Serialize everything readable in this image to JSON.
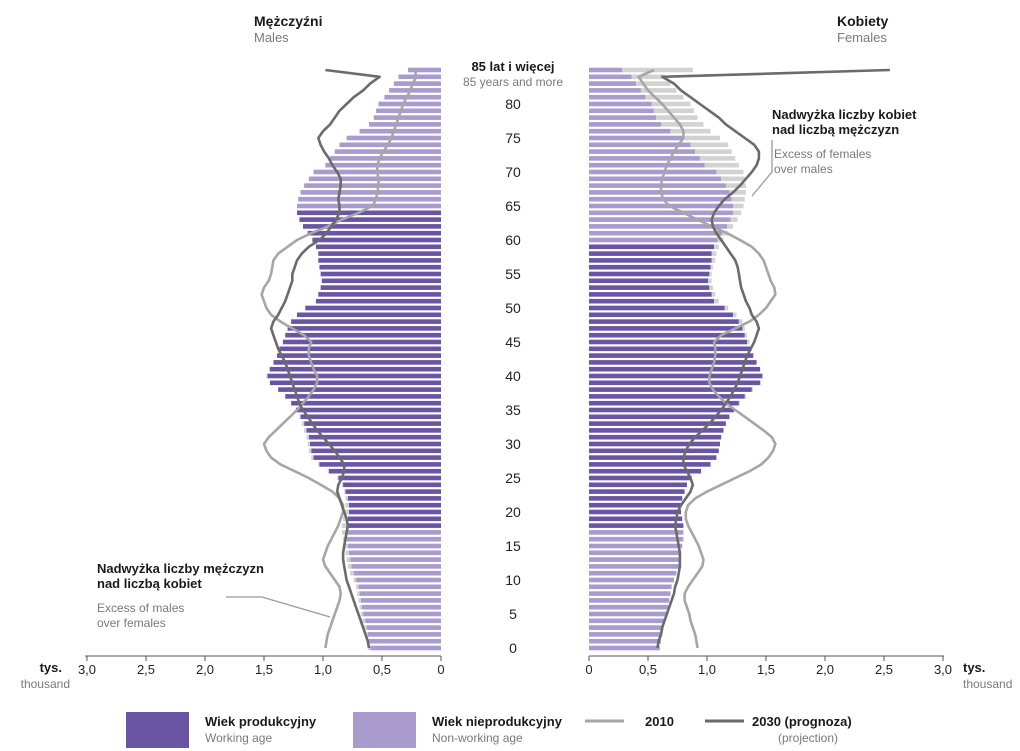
{
  "labels": {
    "males_pl": "Mężczyźni",
    "males_en": "Males",
    "females_pl": "Kobiety",
    "females_en": "Females",
    "age_top_pl": "85 lat i więcej",
    "age_top_en": "85 years and more",
    "unit_pl_left": "tys.",
    "unit_en_left": "thousand",
    "unit_pl_right": "tys.",
    "unit_en_right": "thousand",
    "excess_females_pl_1": "Nadwyżka liczby kobiet",
    "excess_females_pl_2": "nad liczbą mężczyzn",
    "excess_females_en_1": "Excess of females",
    "excess_females_en_2": "over males",
    "excess_males_pl_1": "Nadwyżka liczby mężczyzn",
    "excess_males_pl_2": "nad liczbą kobiet",
    "excess_males_en_1": "Excess of males",
    "excess_males_en_2": "over females"
  },
  "legend": {
    "working_pl": "Wiek produkcyjny",
    "working_en": "Working age",
    "nonworking_pl": "Wiek nieprodukcyjny",
    "nonworking_en": "Non-working age",
    "line2010": "2010",
    "line2030_pl": "2030 (prognoza)",
    "line2030_en": "(projection)"
  },
  "chart_data": {
    "type": "population-pyramid",
    "x_unit": "thousand",
    "age_axis_ticks": [
      "0",
      "5",
      "10",
      "15",
      "20",
      "25",
      "30",
      "35",
      "40",
      "45",
      "50",
      "55",
      "60",
      "65",
      "70",
      "75",
      "80"
    ],
    "value_axis_ticks": [
      "3,0",
      "2,5",
      "2,0",
      "1,5",
      "1,0",
      "0,5",
      "0"
    ],
    "value_axis_ticks_right": [
      "0",
      "0,5",
      "1,0",
      "1,5",
      "2,0",
      "2,5",
      "3,0"
    ],
    "xlim": [
      0,
      3.0
    ],
    "ages": [
      0,
      1,
      2,
      3,
      4,
      5,
      6,
      7,
      8,
      9,
      10,
      11,
      12,
      13,
      14,
      15,
      16,
      17,
      18,
      19,
      20,
      21,
      22,
      23,
      24,
      25,
      26,
      27,
      28,
      29,
      30,
      31,
      32,
      33,
      34,
      35,
      36,
      37,
      38,
      39,
      40,
      41,
      42,
      43,
      44,
      45,
      46,
      47,
      48,
      49,
      50,
      51,
      52,
      53,
      54,
      55,
      56,
      57,
      58,
      59,
      60,
      61,
      62,
      63,
      64,
      65,
      66,
      67,
      68,
      69,
      70,
      71,
      72,
      73,
      74,
      75,
      76,
      77,
      78,
      79,
      80,
      81,
      82,
      83,
      84,
      85
    ],
    "working_age": {
      "males": [
        18,
        64
      ],
      "females": [
        18,
        59
      ]
    },
    "colors": {
      "working": "#6a54a4",
      "nonworking": "#a99bcd",
      "excess": "#d2d2d2",
      "line2010": "#a6a6a6",
      "line2030": "#6b6b6b"
    },
    "series": [
      {
        "name": "Males",
        "values": [
          0.62,
          0.63,
          0.64,
          0.66,
          0.67,
          0.68,
          0.69,
          0.7,
          0.71,
          0.72,
          0.74,
          0.77,
          0.79,
          0.8,
          0.81,
          0.82,
          0.83,
          0.84,
          0.84,
          0.83,
          0.82,
          0.81,
          0.81,
          0.82,
          0.84,
          0.88,
          0.96,
          1.04,
          1.1,
          1.12,
          1.13,
          1.14,
          1.16,
          1.18,
          1.2,
          1.23,
          1.27,
          1.32,
          1.38,
          1.45,
          1.48,
          1.46,
          1.42,
          1.39,
          1.37,
          1.34,
          1.32,
          1.3,
          1.27,
          1.22,
          1.15,
          1.06,
          1.04,
          1.02,
          1.01,
          1.02,
          1.03,
          1.04,
          1.04,
          1.06,
          1.09,
          1.13,
          1.17,
          1.2,
          1.22,
          1.22,
          1.21,
          1.19,
          1.16,
          1.12,
          1.08,
          0.98,
          0.94,
          0.9,
          0.86,
          0.8,
          0.69,
          0.61,
          0.57,
          0.55,
          0.53,
          0.48,
          0.44,
          0.4,
          0.36,
          0.28
        ]
      },
      {
        "name": "Females",
        "values": [
          0.6,
          0.61,
          0.62,
          0.63,
          0.64,
          0.66,
          0.67,
          0.68,
          0.69,
          0.7,
          0.72,
          0.74,
          0.76,
          0.77,
          0.78,
          0.79,
          0.8,
          0.8,
          0.8,
          0.79,
          0.78,
          0.78,
          0.79,
          0.81,
          0.83,
          0.87,
          0.95,
          1.03,
          1.08,
          1.1,
          1.11,
          1.12,
          1.14,
          1.16,
          1.19,
          1.23,
          1.28,
          1.33,
          1.39,
          1.46,
          1.47,
          1.45,
          1.42,
          1.4,
          1.38,
          1.36,
          1.34,
          1.32,
          1.3,
          1.25,
          1.18,
          1.1,
          1.07,
          1.05,
          1.04,
          1.04,
          1.05,
          1.07,
          1.08,
          1.1,
          1.14,
          1.18,
          1.22,
          1.26,
          1.29,
          1.31,
          1.32,
          1.33,
          1.33,
          1.32,
          1.31,
          1.27,
          1.24,
          1.21,
          1.18,
          1.11,
          1.03,
          0.97,
          0.92,
          0.89,
          0.86,
          0.8,
          0.74,
          0.69,
          0.64,
          0.88
        ]
      },
      {
        "name": "2010 Males",
        "values": [
          0.98,
          0.97,
          0.96,
          0.94,
          0.92,
          0.9,
          0.88,
          0.86,
          0.85,
          0.86,
          0.9,
          0.94,
          0.98,
          1.0,
          0.98,
          0.96,
          0.93,
          0.9,
          0.87,
          0.85,
          0.83,
          0.83,
          0.86,
          0.92,
          1.02,
          1.12,
          1.24,
          1.36,
          1.44,
          1.48,
          1.5,
          1.46,
          1.4,
          1.34,
          1.28,
          1.22,
          1.17,
          1.12,
          1.08,
          1.05,
          1.05,
          1.08,
          1.1,
          1.12,
          1.12,
          1.1,
          1.16,
          1.26,
          1.36,
          1.44,
          1.48,
          1.5,
          1.52,
          1.5,
          1.46,
          1.44,
          1.43,
          1.42,
          1.38,
          1.3,
          1.22,
          1.1,
          0.96,
          0.84,
          0.7,
          0.58,
          0.55,
          0.54,
          0.53,
          0.53,
          0.54,
          0.54,
          0.52,
          0.49,
          0.45,
          0.42,
          0.4,
          0.38,
          0.36,
          0.34,
          0.32,
          0.29,
          0.26,
          0.24,
          0.21,
          0.22
        ]
      },
      {
        "name": "2030 Males",
        "values": [
          0.61,
          0.62,
          0.64,
          0.66,
          0.68,
          0.7,
          0.72,
          0.74,
          0.76,
          0.78,
          0.8,
          0.81,
          0.82,
          0.83,
          0.83,
          0.82,
          0.81,
          0.8,
          0.79,
          0.8,
          0.82,
          0.84,
          0.86,
          0.88,
          0.87,
          0.84,
          0.82,
          0.82,
          0.86,
          0.9,
          0.95,
          1.0,
          1.05,
          1.09,
          1.13,
          1.17,
          1.2,
          1.22,
          1.24,
          1.26,
          1.28,
          1.3,
          1.32,
          1.35,
          1.38,
          1.4,
          1.42,
          1.44,
          1.42,
          1.38,
          1.35,
          1.32,
          1.3,
          1.28,
          1.26,
          1.26,
          1.24,
          1.22,
          1.18,
          1.12,
          1.03,
          0.97,
          0.93,
          0.89,
          0.86,
          0.86,
          0.87,
          0.86,
          0.85,
          0.85,
          0.88,
          0.92,
          0.95,
          0.99,
          1.02,
          1.04,
          1.0,
          0.94,
          0.9,
          0.86,
          0.8,
          0.74,
          0.66,
          0.6,
          0.52,
          0.98
        ]
      },
      {
        "name": "2010 Females",
        "values": [
          0.92,
          0.91,
          0.9,
          0.88,
          0.86,
          0.85,
          0.83,
          0.81,
          0.81,
          0.84,
          0.88,
          0.92,
          0.96,
          0.97,
          0.95,
          0.93,
          0.9,
          0.87,
          0.84,
          0.82,
          0.82,
          0.84,
          0.9,
          1.0,
          1.12,
          1.24,
          1.36,
          1.46,
          1.52,
          1.56,
          1.58,
          1.55,
          1.48,
          1.4,
          1.32,
          1.24,
          1.16,
          1.1,
          1.05,
          1.02,
          1.02,
          1.04,
          1.06,
          1.07,
          1.07,
          1.06,
          1.12,
          1.24,
          1.36,
          1.44,
          1.5,
          1.54,
          1.58,
          1.57,
          1.54,
          1.52,
          1.5,
          1.48,
          1.44,
          1.38,
          1.28,
          1.17,
          1.04,
          0.92,
          0.8,
          0.68,
          0.63,
          0.61,
          0.61,
          0.62,
          0.64,
          0.66,
          0.69,
          0.72,
          0.76,
          0.8,
          0.8,
          0.77,
          0.72,
          0.67,
          0.62,
          0.56,
          0.5,
          0.46,
          0.42,
          0.55
        ]
      },
      {
        "name": "2030 Females",
        "values": [
          0.58,
          0.59,
          0.61,
          0.62,
          0.64,
          0.66,
          0.68,
          0.7,
          0.72,
          0.73,
          0.75,
          0.76,
          0.77,
          0.77,
          0.77,
          0.76,
          0.75,
          0.74,
          0.73,
          0.74,
          0.75,
          0.78,
          0.82,
          0.86,
          0.88,
          0.86,
          0.83,
          0.8,
          0.8,
          0.82,
          0.85,
          0.9,
          0.96,
          1.02,
          1.07,
          1.12,
          1.16,
          1.2,
          1.23,
          1.26,
          1.28,
          1.3,
          1.32,
          1.34,
          1.37,
          1.4,
          1.42,
          1.44,
          1.42,
          1.38,
          1.36,
          1.33,
          1.31,
          1.29,
          1.28,
          1.27,
          1.26,
          1.24,
          1.2,
          1.16,
          1.12,
          1.08,
          1.05,
          1.04,
          1.06,
          1.1,
          1.15,
          1.22,
          1.28,
          1.33,
          1.38,
          1.42,
          1.44,
          1.44,
          1.4,
          1.32,
          1.24,
          1.16,
          1.1,
          1.02,
          0.94,
          0.86,
          0.78,
          0.72,
          0.62,
          2.55
        ]
      }
    ]
  }
}
